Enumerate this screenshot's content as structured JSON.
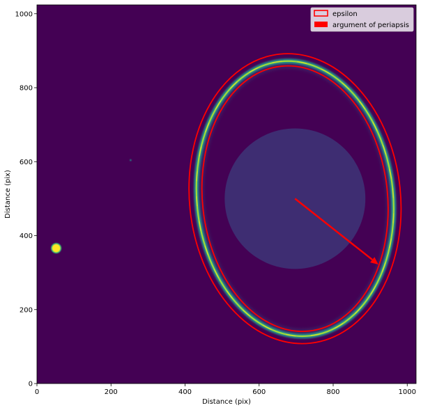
{
  "chart_data": {
    "type": "heatmap",
    "title": "",
    "xlabel": "Distance (pix)",
    "ylabel": "Distance (pix)",
    "xlim": [
      0,
      1024
    ],
    "ylim": [
      0,
      1024
    ],
    "xticks": [
      0,
      200,
      400,
      600,
      800,
      1000
    ],
    "yticks": [
      0,
      200,
      400,
      600,
      800,
      1000
    ],
    "grid": false,
    "legend_position": "top-right",
    "colormap": "viridis",
    "colors": {
      "background": "#440154",
      "overlay": "#ff0000"
    },
    "image_features": {
      "ring": {
        "center": [
          697,
          500
        ],
        "rx": 265,
        "ry": 373,
        "rotation_deg": -6
      },
      "disk": {
        "center": [
          697,
          500
        ],
        "r": 190
      },
      "bright_spot": {
        "center": [
          52,
          366
        ]
      },
      "faint_spot": {
        "center": [
          253,
          604
        ]
      }
    },
    "series": [
      {
        "name": "epsilon",
        "kind": "ellipse",
        "ellipses": [
          {
            "center": [
              697,
              500
            ],
            "rx": 285,
            "ry": 393,
            "rotation_deg": -6
          },
          {
            "center": [
              697,
              500
            ],
            "rx": 250,
            "ry": 360,
            "rotation_deg": -6
          }
        ]
      },
      {
        "name": "argument of periapsis",
        "kind": "arrow",
        "from": [
          697,
          500
        ],
        "to": [
          922,
          322
        ]
      }
    ]
  }
}
